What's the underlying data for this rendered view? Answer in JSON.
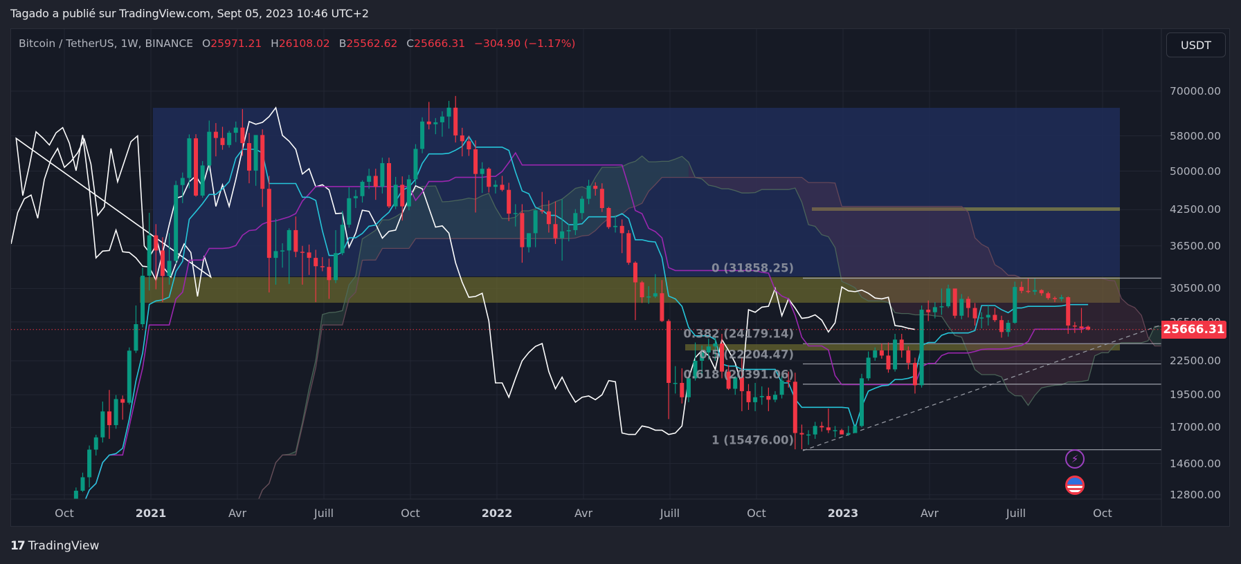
{
  "header": {
    "published": "Tagado a publié sur TradingView.com, Sept 05, 2023 10:46 UTC+2"
  },
  "legend": {
    "symbol": "Bitcoin / TetherUS, 1W, BINANCE",
    "open_key": "O",
    "open": "25971.21",
    "high_key": "H",
    "high": "26108.02",
    "low_key": "B",
    "low": "25562.62",
    "close_key": "C",
    "close": "25666.31",
    "change": "−304.90 (−1.17%)"
  },
  "currency_button": "USDT",
  "last_price": "25666.31",
  "footer": {
    "brand": "TradingView",
    "brand_mark": "17"
  },
  "colors": {
    "up": "#089981",
    "down": "#f23645",
    "conversion": "#26c6da",
    "base": "#9c27b0",
    "lagging": "#ffffff",
    "box_blue": "#1e2b55",
    "zone_yellow": "#5a5a2a"
  },
  "price_axis": {
    "labels": [
      "70000.00",
      "58000.00",
      "50000.00",
      "42500.00",
      "36500.00",
      "30500.00",
      "26500.00",
      "22500.00",
      "19500.00",
      "17000.00",
      "14600.00",
      "12800.00"
    ]
  },
  "time_axis": {
    "labels": [
      "Oct",
      "2021",
      "Avr",
      "Juill",
      "Oct",
      "2022",
      "Avr",
      "Juill",
      "Oct",
      "2023",
      "Avr",
      "Juill",
      "Oct"
    ]
  },
  "fib": {
    "levels": [
      {
        "label": "0 (31858.25)",
        "price": 31858.25
      },
      {
        "label": "0.382 (24179.14)",
        "price": 24179.14
      },
      {
        "label": "0.5 (22204.47)",
        "price": 22204.47
      },
      {
        "label": "0.618 (20391.06)",
        "price": 20391.06
      },
      {
        "label": "1 (15476.00)",
        "price": 15476.0
      }
    ]
  },
  "event_icons": [
    {
      "name": "lightning-event-icon",
      "glyph": "⚡"
    },
    {
      "name": "us-flag-event-icon",
      "glyph": "🇺🇸"
    }
  ],
  "chart_data": {
    "type": "candlestick",
    "title": "Bitcoin / TetherUS, 1W, BINANCE",
    "xlabel": "",
    "ylabel": "USDT",
    "scale": "log",
    "ylim": [
      12000,
      76000
    ],
    "x_range": [
      "2020-07",
      "2023-12"
    ],
    "start_week": "2020-09-28",
    "ohlc": [
      [
        10780,
        11050,
        10370,
        10620
      ],
      [
        10620,
        11480,
        10540,
        11380
      ],
      [
        11380,
        11750,
        11230,
        11500
      ],
      [
        11500,
        13200,
        11420,
        13020
      ],
      [
        13020,
        14050,
        12950,
        13780
      ],
      [
        13780,
        15750,
        13200,
        15480
      ],
      [
        15480,
        16480,
        15100,
        16300
      ],
      [
        16300,
        18950,
        15950,
        18180
      ],
      [
        18180,
        19900,
        16200,
        17160
      ],
      [
        17160,
        19480,
        16900,
        19150
      ],
      [
        19150,
        19440,
        17560,
        18860
      ],
      [
        18860,
        23800,
        18720,
        23480
      ],
      [
        23480,
        28400,
        23250,
        26250
      ],
      [
        26250,
        33300,
        25900,
        32190
      ],
      [
        32190,
        41950,
        30250,
        38150
      ],
      [
        38150,
        40000,
        30400,
        35800
      ],
      [
        35800,
        37850,
        28800,
        32150
      ],
      [
        32150,
        38500,
        31000,
        34270
      ],
      [
        34270,
        48000,
        33800,
        47150
      ],
      [
        47150,
        49700,
        43700,
        48580
      ],
      [
        48580,
        58350,
        46500,
        57400
      ],
      [
        57400,
        58400,
        44900,
        45100
      ],
      [
        45100,
        52150,
        44700,
        51200
      ],
      [
        51200,
        61850,
        50000,
        59000
      ],
      [
        59000,
        61200,
        53200,
        57480
      ],
      [
        57480,
        60250,
        54700,
        55800
      ],
      [
        55800,
        59250,
        55200,
        58750
      ],
      [
        58750,
        61600,
        56500,
        60050
      ],
      [
        60050,
        64900,
        53300,
        56250
      ],
      [
        56250,
        58700,
        47500,
        50100
      ],
      [
        50100,
        58000,
        47000,
        58200
      ],
      [
        58200,
        59600,
        43000,
        46400
      ],
      [
        46400,
        49000,
        30000,
        34700
      ],
      [
        34700,
        40900,
        31000,
        35700
      ],
      [
        35700,
        36900,
        33300,
        35800
      ],
      [
        35800,
        39300,
        31100,
        39000
      ],
      [
        39000,
        41300,
        34800,
        35600
      ],
      [
        35600,
        36500,
        31000,
        35500
      ],
      [
        35500,
        36700,
        32300,
        34700
      ],
      [
        34700,
        35900,
        28800,
        33500
      ],
      [
        33500,
        34800,
        32800,
        33400
      ],
      [
        33400,
        34600,
        29200,
        31600
      ],
      [
        31600,
        39000,
        31200,
        35400
      ],
      [
        35400,
        42300,
        35100,
        39900
      ],
      [
        39900,
        46700,
        39400,
        44600
      ],
      [
        44600,
        46200,
        42800,
        45000
      ],
      [
        45000,
        48100,
        43800,
        47800
      ],
      [
        47800,
        50500,
        46400,
        49000
      ],
      [
        49000,
        50500,
        44300,
        46800
      ],
      [
        46800,
        52900,
        45500,
        51700
      ],
      [
        51700,
        52900,
        42800,
        43100
      ],
      [
        43100,
        48800,
        42600,
        47200
      ],
      [
        47200,
        48900,
        40600,
        43100
      ],
      [
        43100,
        49200,
        42400,
        48300
      ],
      [
        48300,
        56000,
        47100,
        54900
      ],
      [
        54900,
        62700,
        53900,
        61600
      ],
      [
        61600,
        66900,
        59600,
        60900
      ],
      [
        60900,
        62500,
        58400,
        61400
      ],
      [
        61400,
        64300,
        57800,
        62900
      ],
      [
        62900,
        67200,
        59800,
        65300
      ],
      [
        65300,
        68600,
        56400,
        58100
      ],
      [
        58100,
        60000,
        53200,
        56700
      ],
      [
        56700,
        58000,
        53300,
        54800
      ],
      [
        54800,
        56900,
        42000,
        49400
      ],
      [
        49400,
        51900,
        45600,
        50500
      ],
      [
        50500,
        50800,
        45700,
        46800
      ],
      [
        46800,
        48100,
        45500,
        47200
      ],
      [
        47200,
        49000,
        45900,
        46200
      ],
      [
        46200,
        47600,
        40500,
        41800
      ],
      [
        41800,
        43500,
        39600,
        41900
      ],
      [
        41900,
        43500,
        34000,
        36300
      ],
      [
        36300,
        38500,
        35500,
        38500
      ],
      [
        38500,
        42500,
        36300,
        42400
      ],
      [
        42400,
        45800,
        41800,
        42200
      ],
      [
        42200,
        44200,
        38600,
        40000
      ],
      [
        40000,
        44000,
        36800,
        37700
      ],
      [
        37700,
        44400,
        34300,
        38800
      ],
      [
        38800,
        40000,
        37200,
        39000
      ],
      [
        39000,
        42600,
        38200,
        41900
      ],
      [
        41900,
        45000,
        40800,
        44500
      ],
      [
        44500,
        48200,
        43500,
        47000
      ],
      [
        47000,
        47700,
        45100,
        46400
      ],
      [
        46400,
        47500,
        42100,
        42800
      ],
      [
        42800,
        43000,
        39200,
        39500
      ],
      [
        39500,
        41500,
        38600,
        39700
      ],
      [
        39700,
        40800,
        35400,
        38500
      ],
      [
        38500,
        39000,
        33700,
        34000
      ],
      [
        34000,
        34200,
        26700,
        31300
      ],
      [
        31300,
        31500,
        28700,
        29400
      ],
      [
        29400,
        30800,
        28600,
        29500
      ],
      [
        29500,
        32400,
        29300,
        29900
      ],
      [
        29900,
        31600,
        26500,
        26600
      ],
      [
        26600,
        26800,
        17600,
        20500
      ],
      [
        20500,
        22000,
        19600,
        20500
      ],
      [
        20500,
        21800,
        18800,
        19300
      ],
      [
        19300,
        21000,
        18900,
        20900
      ],
      [
        20900,
        24300,
        20700,
        22500
      ],
      [
        22500,
        24000,
        21000,
        23300
      ],
      [
        23300,
        24700,
        22600,
        23900
      ],
      [
        23900,
        24900,
        22500,
        24200
      ],
      [
        24200,
        25200,
        20900,
        21500
      ],
      [
        21500,
        22100,
        19900,
        20000
      ],
      [
        20000,
        21100,
        19500,
        21000
      ],
      [
        21000,
        22800,
        18200,
        19800
      ],
      [
        19800,
        20400,
        18300,
        18900
      ],
      [
        18900,
        20500,
        18200,
        19300
      ],
      [
        19300,
        20200,
        18700,
        19400
      ],
      [
        19400,
        20100,
        18200,
        19100
      ],
      [
        19100,
        19800,
        18900,
        19500
      ],
      [
        19500,
        21100,
        19200,
        20700
      ],
      [
        20700,
        21500,
        20100,
        20600
      ],
      [
        20600,
        21400,
        15500,
        16600
      ],
      [
        16600,
        17200,
        15500,
        16500
      ],
      [
        16500,
        16800,
        15800,
        16500
      ],
      [
        16500,
        17400,
        16200,
        17100
      ],
      [
        17100,
        17400,
        16700,
        17000
      ],
      [
        17000,
        18400,
        16600,
        16800
      ],
      [
        16800,
        17100,
        16300,
        16800
      ],
      [
        16800,
        16900,
        16500,
        16500
      ],
      [
        16500,
        17100,
        16400,
        16600
      ],
      [
        16600,
        17200,
        16600,
        17100
      ],
      [
        17100,
        21300,
        17000,
        20900
      ],
      [
        20900,
        23400,
        20700,
        22800
      ],
      [
        22800,
        23800,
        22500,
        23500
      ],
      [
        23500,
        24200,
        22700,
        23000
      ],
      [
        23000,
        24300,
        21400,
        21700
      ],
      [
        21700,
        25200,
        21500,
        24600
      ],
      [
        24600,
        25200,
        22800,
        23500
      ],
      [
        23500,
        23900,
        21700,
        22300
      ],
      [
        22300,
        22800,
        19600,
        20300
      ],
      [
        20300,
        28400,
        20100,
        27900
      ],
      [
        27900,
        29000,
        26600,
        27600
      ],
      [
        27600,
        28800,
        26900,
        28200
      ],
      [
        28200,
        30500,
        27300,
        28300
      ],
      [
        28300,
        31000,
        28100,
        30500
      ],
      [
        30500,
        30300,
        26900,
        27200
      ],
      [
        27200,
        29800,
        26800,
        29200
      ],
      [
        29200,
        29500,
        27000,
        28100
      ],
      [
        28100,
        28700,
        26100,
        26900
      ],
      [
        26900,
        27600,
        25800,
        27000
      ],
      [
        27000,
        28400,
        26100,
        27300
      ],
      [
        27300,
        28100,
        26500,
        26700
      ],
      [
        26700,
        27200,
        24800,
        25400
      ],
      [
        25400,
        26700,
        24900,
        26400
      ],
      [
        26400,
        31400,
        26300,
        30700
      ],
      [
        30700,
        31400,
        29900,
        30200
      ],
      [
        30200,
        31800,
        29900,
        30100
      ],
      [
        30100,
        31800,
        29700,
        30300
      ],
      [
        30300,
        30400,
        29600,
        29900
      ],
      [
        29900,
        30100,
        29100,
        29300
      ],
      [
        29300,
        29500,
        28800,
        29200
      ],
      [
        29200,
        29700,
        28900,
        29400
      ],
      [
        29400,
        29500,
        25200,
        26100
      ],
      [
        26100,
        26500,
        25300,
        26000
      ],
      [
        26000,
        28100,
        25300,
        25800
      ],
      [
        25971,
        26108,
        25562,
        25666
      ]
    ],
    "series": [
      {
        "name": "Ichimoku Conversion Line",
        "color": "#26c6da"
      },
      {
        "name": "Ichimoku Base Line",
        "color": "#9c27b0"
      },
      {
        "name": "Ichimoku Lagging Span",
        "color": "#ffffff"
      },
      {
        "name": "Ichimoku Cloud (Leading Span A/B)",
        "color": "#4a6b5a / #5a4050"
      }
    ],
    "zones": [
      {
        "name": "resistance-box",
        "price_from": 32200,
        "price_to": 65500,
        "color": "#1e2b55"
      },
      {
        "name": "yellow-zone-high",
        "price_from": 28400,
        "price_to": 32000
      },
      {
        "name": "yellow-zone-low",
        "price_from": 23600,
        "price_to": 24500
      },
      {
        "name": "line-42500",
        "price": 42200
      }
    ],
    "last_price": 25666.31
  }
}
